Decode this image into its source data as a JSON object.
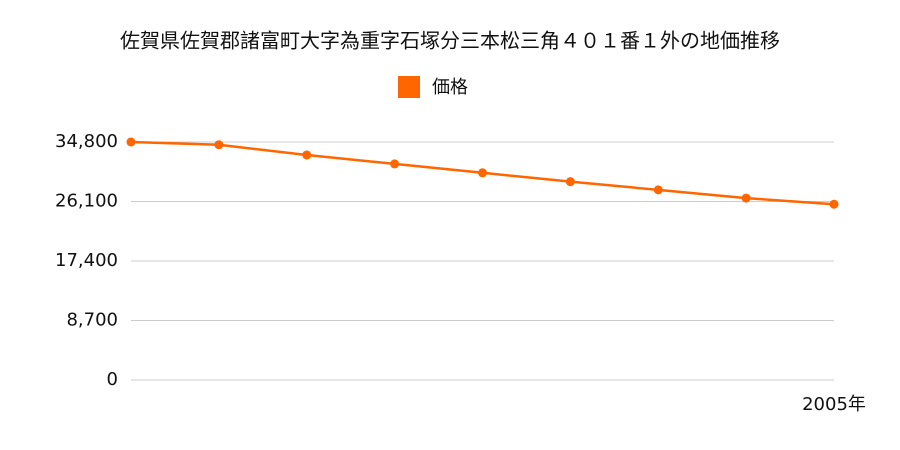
{
  "chart_data": {
    "type": "line",
    "title": "佐賀県佐賀郡諸富町大字為重字石塚分三本松三角４０１番１外の地価推移",
    "categories": [
      null,
      null,
      null,
      null,
      null,
      null,
      null,
      null,
      "2005年"
    ],
    "series": [
      {
        "name": "価格",
        "color": "#ff6600",
        "values": [
          34800,
          34400,
          32900,
          31600,
          30300,
          29000,
          27800,
          26600,
          25700
        ]
      }
    ],
    "ylim": [
      0,
      34800
    ],
    "yticks": [
      0,
      {
        "value": 8700,
        "label": "8,700"
      },
      {
        "value": 17400,
        "label": "17,400"
      },
      {
        "value": 26100,
        "label": "26,100"
      },
      {
        "value": 34800,
        "label": "34,800"
      }
    ],
    "grid": true
  }
}
